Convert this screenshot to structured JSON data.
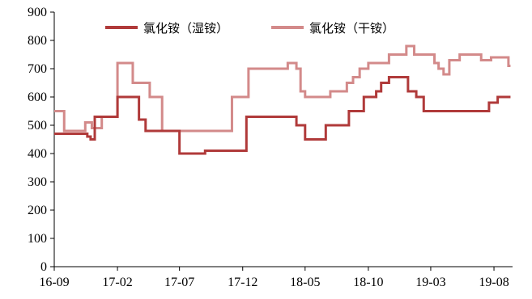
{
  "chart_data": {
    "type": "line",
    "title": "",
    "xlabel": "",
    "ylabel": "",
    "ylim": [
      0,
      900
    ],
    "yticks": [
      0,
      100,
      200,
      300,
      400,
      500,
      600,
      700,
      800,
      900
    ],
    "xticks": [
      "16-09",
      "17-02",
      "17-07",
      "17-12",
      "18-05",
      "18-10",
      "19-03",
      "19-08"
    ],
    "xrange": [
      "2016-09-01",
      "2019-09-15"
    ],
    "grid": false,
    "legend_position": "top",
    "series": [
      {
        "name": "氯化铵（湿铵）",
        "color": "#b03a3a",
        "points": [
          [
            "2016-09-01",
            470
          ],
          [
            "2016-11-20",
            470
          ],
          [
            "2016-11-20",
            460
          ],
          [
            "2016-11-28",
            460
          ],
          [
            "2016-11-28",
            450
          ],
          [
            "2016-12-08",
            450
          ],
          [
            "2016-12-08",
            530
          ],
          [
            "2017-02-01",
            530
          ],
          [
            "2017-02-01",
            600
          ],
          [
            "2017-03-25",
            600
          ],
          [
            "2017-03-25",
            520
          ],
          [
            "2017-04-10",
            520
          ],
          [
            "2017-04-10",
            480
          ],
          [
            "2017-07-01",
            480
          ],
          [
            "2017-07-01",
            400
          ],
          [
            "2017-09-01",
            400
          ],
          [
            "2017-09-01",
            410
          ],
          [
            "2017-12-10",
            410
          ],
          [
            "2017-12-10",
            530
          ],
          [
            "2018-04-10",
            530
          ],
          [
            "2018-04-10",
            500
          ],
          [
            "2018-05-01",
            500
          ],
          [
            "2018-05-01",
            450
          ],
          [
            "2018-06-20",
            450
          ],
          [
            "2018-06-20",
            500
          ],
          [
            "2018-08-15",
            500
          ],
          [
            "2018-08-15",
            550
          ],
          [
            "2018-09-20",
            550
          ],
          [
            "2018-09-20",
            600
          ],
          [
            "2018-10-20",
            600
          ],
          [
            "2018-10-20",
            620
          ],
          [
            "2018-11-01",
            620
          ],
          [
            "2018-11-01",
            650
          ],
          [
            "2018-11-20",
            650
          ],
          [
            "2018-11-20",
            670
          ],
          [
            "2019-01-05",
            670
          ],
          [
            "2019-01-05",
            620
          ],
          [
            "2019-01-25",
            620
          ],
          [
            "2019-01-25",
            600
          ],
          [
            "2019-02-12",
            600
          ],
          [
            "2019-02-12",
            550
          ],
          [
            "2019-07-20",
            550
          ],
          [
            "2019-07-20",
            580
          ],
          [
            "2019-08-10",
            580
          ],
          [
            "2019-08-10",
            600
          ],
          [
            "2019-09-10",
            600
          ]
        ]
      },
      {
        "name": "氯化铵（干铵）",
        "color": "#d38a8a",
        "points": [
          [
            "2016-09-01",
            550
          ],
          [
            "2016-09-25",
            550
          ],
          [
            "2016-09-25",
            480
          ],
          [
            "2016-11-15",
            480
          ],
          [
            "2016-11-15",
            510
          ],
          [
            "2016-12-01",
            510
          ],
          [
            "2016-12-01",
            490
          ],
          [
            "2016-12-25",
            490
          ],
          [
            "2016-12-25",
            530
          ],
          [
            "2017-02-01",
            530
          ],
          [
            "2017-02-01",
            720
          ],
          [
            "2017-03-10",
            720
          ],
          [
            "2017-03-10",
            650
          ],
          [
            "2017-04-20",
            650
          ],
          [
            "2017-04-20",
            600
          ],
          [
            "2017-05-20",
            600
          ],
          [
            "2017-05-20",
            480
          ],
          [
            "2017-11-05",
            480
          ],
          [
            "2017-11-05",
            600
          ],
          [
            "2017-12-15",
            600
          ],
          [
            "2017-12-15",
            700
          ],
          [
            "2018-03-20",
            700
          ],
          [
            "2018-03-20",
            720
          ],
          [
            "2018-04-10",
            720
          ],
          [
            "2018-04-10",
            700
          ],
          [
            "2018-04-20",
            700
          ],
          [
            "2018-04-20",
            620
          ],
          [
            "2018-05-01",
            620
          ],
          [
            "2018-05-01",
            600
          ],
          [
            "2018-07-01",
            600
          ],
          [
            "2018-07-01",
            620
          ],
          [
            "2018-08-10",
            620
          ],
          [
            "2018-08-10",
            650
          ],
          [
            "2018-08-25",
            650
          ],
          [
            "2018-08-25",
            670
          ],
          [
            "2018-09-10",
            670
          ],
          [
            "2018-09-10",
            700
          ],
          [
            "2018-10-01",
            700
          ],
          [
            "2018-10-01",
            720
          ],
          [
            "2018-11-20",
            720
          ],
          [
            "2018-11-20",
            750
          ],
          [
            "2019-01-01",
            750
          ],
          [
            "2019-01-01",
            780
          ],
          [
            "2019-01-20",
            780
          ],
          [
            "2019-01-20",
            750
          ],
          [
            "2019-03-10",
            750
          ],
          [
            "2019-03-10",
            720
          ],
          [
            "2019-03-20",
            720
          ],
          [
            "2019-03-20",
            700
          ],
          [
            "2019-04-01",
            700
          ],
          [
            "2019-04-01",
            680
          ],
          [
            "2019-04-15",
            680
          ],
          [
            "2019-04-15",
            730
          ],
          [
            "2019-05-10",
            730
          ],
          [
            "2019-05-10",
            750
          ],
          [
            "2019-07-01",
            750
          ],
          [
            "2019-07-01",
            730
          ],
          [
            "2019-07-25",
            730
          ],
          [
            "2019-07-25",
            740
          ],
          [
            "2019-09-05",
            740
          ],
          [
            "2019-09-05",
            710
          ],
          [
            "2019-09-10",
            710
          ]
        ]
      }
    ]
  }
}
